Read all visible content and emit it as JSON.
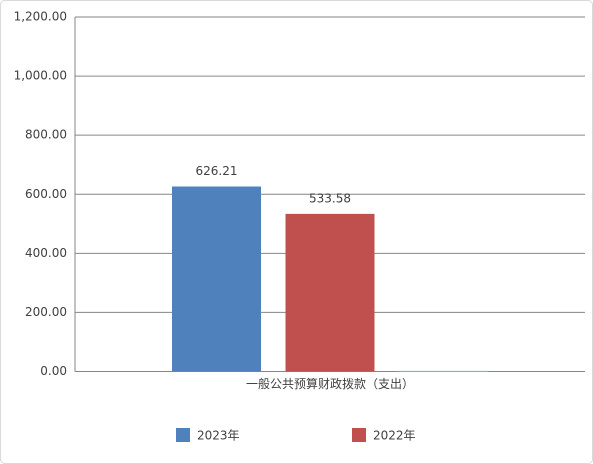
{
  "chart_data": {
    "type": "bar",
    "categories": [
      "一般公共预算财政拨款（支出）"
    ],
    "series": [
      {
        "name": "2023年",
        "color": "#4f81bd",
        "values": [
          626.21
        ]
      },
      {
        "name": "2022年",
        "color": "#c0504d",
        "values": [
          533.58
        ]
      },
      {
        "color": "#9bbb59",
        "values": [
          2
        ]
      }
    ],
    "ylim": [
      0,
      1200
    ],
    "yticks": [
      {
        "value": 0,
        "label": "0.00"
      },
      {
        "value": 200,
        "label": "200.00"
      },
      {
        "value": 400,
        "label": "400.00"
      },
      {
        "value": 600,
        "label": "600.00"
      },
      {
        "value": 800,
        "label": "800.00"
      },
      {
        "value": 1000,
        "label": "1,000.00"
      },
      {
        "value": 1200,
        "label": "1,200.00"
      }
    ],
    "grid": true,
    "legend": "bottom"
  }
}
